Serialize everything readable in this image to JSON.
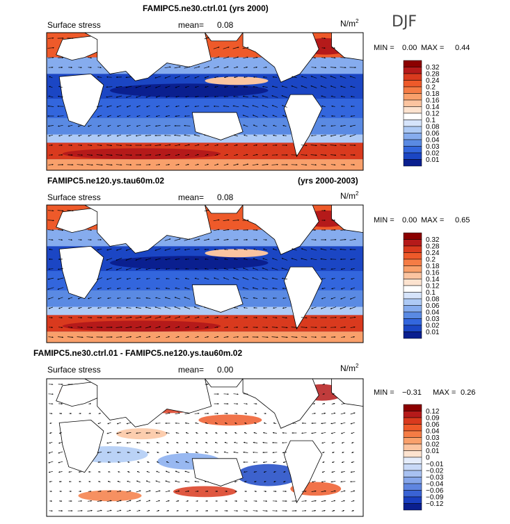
{
  "season_label": "DJF",
  "units": "N/m",
  "units_sup": "2",
  "chart_data": [
    {
      "type": "heatmap",
      "title_left": "FAMIPC5.ne30.ctrl.01 (yrs 2000)",
      "title_right": "",
      "field": "Surface stress",
      "mean_label": "mean=",
      "mean_value": "0.08",
      "min_label": "MIN =",
      "min_value": "0.00",
      "max_label": "MAX =",
      "max_value": "0.44",
      "colorbar_levels": [
        "0.32",
        "0.28",
        "0.24",
        "0.2",
        "0.18",
        "0.16",
        "0.14",
        "0.12",
        "0.1",
        "0.08",
        "0.06",
        "0.04",
        "0.03",
        "0.02",
        "0.01"
      ],
      "colorbar_colors": [
        "#8b0000",
        "#b51a1a",
        "#d93a1e",
        "#ee5a2a",
        "#f57c45",
        "#f9a06b",
        "#fbc4a0",
        "#fde3cf",
        "#ffffff",
        "#d6e4fb",
        "#aecaf5",
        "#86acee",
        "#5a8ae3",
        "#3366dd",
        "#1b46c4",
        "#0a1f8f"
      ]
    },
    {
      "type": "heatmap",
      "title_left": "FAMIPC5.ne120.ys.tau60m.02",
      "title_right": "(yrs 2000-2003)",
      "field": "Surface stress",
      "mean_label": "mean=",
      "mean_value": "0.08",
      "min_label": "MIN =",
      "min_value": "0.00",
      "max_label": "MAX =",
      "max_value": "0.65",
      "colorbar_levels": [
        "0.32",
        "0.28",
        "0.24",
        "0.2",
        "0.18",
        "0.16",
        "0.14",
        "0.12",
        "0.1",
        "0.08",
        "0.06",
        "0.04",
        "0.03",
        "0.02",
        "0.01"
      ],
      "colorbar_colors": [
        "#8b0000",
        "#b51a1a",
        "#d93a1e",
        "#ee5a2a",
        "#f57c45",
        "#f9a06b",
        "#fbc4a0",
        "#fde3cf",
        "#ffffff",
        "#d6e4fb",
        "#aecaf5",
        "#86acee",
        "#5a8ae3",
        "#3366dd",
        "#1b46c4",
        "#0a1f8f"
      ]
    },
    {
      "type": "heatmap",
      "title_left": "FAMIPC5.ne30.ctrl.01 - FAMIPC5.ne120.ys.tau60m.02",
      "title_right": "",
      "field": "Surface stress",
      "mean_label": "mean=",
      "mean_value": "0.00",
      "min_label": "MIN =",
      "min_value": "−0.31",
      "max_label": "MAX =",
      "max_value": "0.26",
      "colorbar_levels": [
        "0.12",
        "0.09",
        "0.06",
        "0.04",
        "0.03",
        "0.02",
        "0.01",
        "0",
        "−0.01",
        "−0.02",
        "−0.03",
        "−0.04",
        "−0.06",
        "−0.09",
        "−0.12"
      ],
      "colorbar_colors": [
        "#8b0000",
        "#b51a1a",
        "#d93a1e",
        "#ee5a2a",
        "#f57c45",
        "#f9a06b",
        "#fbc4a0",
        "#fde3cf",
        "#e4ecfb",
        "#c8d9f7",
        "#a8c1f1",
        "#86a6ea",
        "#5f85e0",
        "#3a63d4",
        "#1a3fc0",
        "#0a1f8f"
      ]
    }
  ]
}
